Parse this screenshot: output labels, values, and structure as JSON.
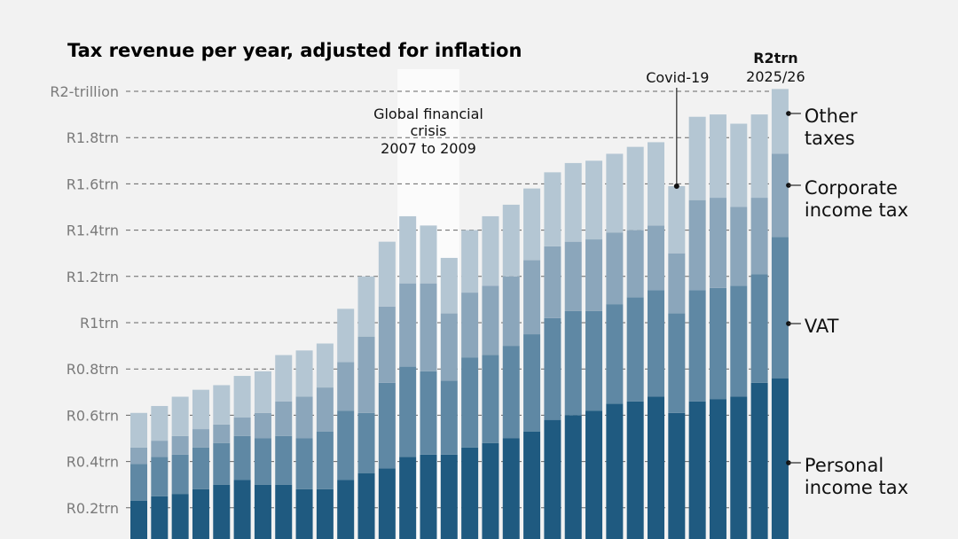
{
  "chart_data": {
    "type": "bar",
    "stacked": true,
    "title": "Tax revenue per year, adjusted for inflation",
    "ylim": [
      0,
      2.0
    ],
    "yticks": [
      {
        "value": 0.2,
        "label": "R0.2trn"
      },
      {
        "value": 0.4,
        "label": "R0.4trn"
      },
      {
        "value": 0.6,
        "label": "R0.6trn"
      },
      {
        "value": 0.8,
        "label": "R0.8trn"
      },
      {
        "value": 1.0,
        "label": "R1trn"
      },
      {
        "value": 1.2,
        "label": "R1.2trn"
      },
      {
        "value": 1.4,
        "label": "R1.4trn"
      },
      {
        "value": 1.6,
        "label": "R1.6trn"
      },
      {
        "value": 1.8,
        "label": "R1.8trn"
      },
      {
        "value": 2.0,
        "label": "R2-trillion"
      }
    ],
    "grid": true,
    "legend": "right",
    "series": [
      {
        "name": "Personal income tax",
        "color": "#1f5a80",
        "values": [
          0.23,
          0.25,
          0.26,
          0.28,
          0.3,
          0.32,
          0.3,
          0.3,
          0.28,
          0.28,
          0.32,
          0.35,
          0.37,
          0.42,
          0.43,
          0.43,
          0.46,
          0.48,
          0.5,
          0.53,
          0.58,
          0.6,
          0.62,
          0.65,
          0.66,
          0.68,
          0.61,
          0.66,
          0.67,
          0.68,
          0.74,
          0.76
        ]
      },
      {
        "name": "VAT",
        "color": "#5f88a4",
        "values": [
          0.16,
          0.17,
          0.17,
          0.18,
          0.18,
          0.19,
          0.2,
          0.21,
          0.22,
          0.25,
          0.3,
          0.26,
          0.37,
          0.39,
          0.36,
          0.32,
          0.39,
          0.38,
          0.4,
          0.42,
          0.44,
          0.45,
          0.43,
          0.43,
          0.45,
          0.46,
          0.43,
          0.48,
          0.48,
          0.48,
          0.47,
          0.61
        ]
      },
      {
        "name": "Corporate income tax",
        "color": "#8ba6bb",
        "values": [
          0.07,
          0.07,
          0.08,
          0.08,
          0.08,
          0.08,
          0.11,
          0.15,
          0.18,
          0.19,
          0.21,
          0.33,
          0.33,
          0.36,
          0.38,
          0.29,
          0.28,
          0.3,
          0.3,
          0.32,
          0.31,
          0.3,
          0.31,
          0.31,
          0.29,
          0.28,
          0.26,
          0.39,
          0.39,
          0.34,
          0.33,
          0.36
        ]
      },
      {
        "name": "Other taxes",
        "color": "#b4c6d3",
        "values": [
          0.15,
          0.15,
          0.17,
          0.17,
          0.17,
          0.18,
          0.18,
          0.2,
          0.2,
          0.19,
          0.23,
          0.26,
          0.28,
          0.29,
          0.25,
          0.24,
          0.27,
          0.3,
          0.31,
          0.31,
          0.32,
          0.34,
          0.34,
          0.34,
          0.36,
          0.36,
          0.29,
          0.36,
          0.36,
          0.36,
          0.36,
          0.28
        ]
      }
    ],
    "legend_labels": [
      {
        "line1": "Other",
        "line2": "taxes"
      },
      {
        "line1": "Corporate",
        "line2": "income tax"
      },
      {
        "line1": "VAT",
        "line2": ""
      },
      {
        "line1": "Personal",
        "line2": "income tax"
      }
    ],
    "annotations": {
      "gfc": {
        "line1": "Global financial",
        "line2": "crisis",
        "line3": "2007 to 2009",
        "bar_range": [
          14,
          16
        ]
      },
      "covid": {
        "label": "Covid-19",
        "bar": 27
      },
      "latest": {
        "value_label": "R2trn",
        "period": "2025/26"
      }
    }
  }
}
